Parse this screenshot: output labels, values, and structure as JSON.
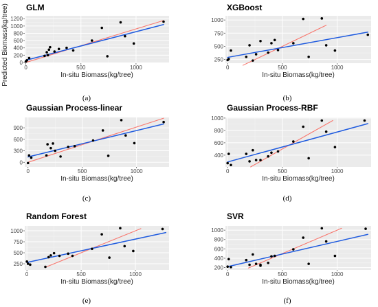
{
  "figure": {
    "panels": [
      {
        "caption": "(a)",
        "chart_data": {
          "type": "scatter",
          "title": "GLM",
          "xlabel": "In-situ Biomass(kg/tree)",
          "ylabel": "Predicted Biomass(kg/tree)",
          "xlim": [
            -10,
            1300
          ],
          "ylim": [
            -20,
            1280
          ],
          "xticks": [
            0,
            500,
            1000
          ],
          "xtick_labels": [
            "0",
            "500",
            "1000"
          ],
          "yticks": [
            0,
            200,
            400,
            600,
            800,
            1000,
            1200
          ],
          "ytick_labels": [
            "0",
            "200",
            "400",
            "600",
            "800",
            "1000",
            "1200"
          ],
          "grid": true,
          "points": [
            [
              0,
              25
            ],
            [
              10,
              60
            ],
            [
              30,
              120
            ],
            [
              170,
              180
            ],
            [
              200,
              200
            ],
            [
              190,
              280
            ],
            [
              210,
              350
            ],
            [
              220,
              420
            ],
            [
              260,
              300
            ],
            [
              300,
              370
            ],
            [
              370,
              400
            ],
            [
              430,
              330
            ],
            [
              600,
              600
            ],
            [
              690,
              950
            ],
            [
              740,
              170
            ],
            [
              860,
              1100
            ],
            [
              900,
              720
            ],
            [
              980,
              520
            ],
            [
              1250,
              1120
            ]
          ],
          "series": [
            {
              "name": "",
              "kind": "line",
              "color": "#f8766d",
              "x": [
                0,
                1250
              ],
              "y": [
                0,
                1150
              ]
            },
            {
              "name": "",
              "kind": "line",
              "color": "#1f5bdf",
              "x": [
                0,
                1250
              ],
              "y": [
                60,
                1040
              ]
            }
          ]
        }
      },
      {
        "caption": "(b)",
        "chart_data": {
          "type": "scatter",
          "title": "XGBoost",
          "xlabel": "In-situ Biomass(kg/tree)",
          "ylabel": "",
          "xlim": [
            -20,
            1310
          ],
          "ylim": [
            180,
            1080
          ],
          "xticks": [
            0,
            500,
            1000
          ],
          "xtick_labels": [
            "0",
            "500",
            "1000"
          ],
          "yticks": [
            250,
            500,
            750,
            1000
          ],
          "ytick_labels": [
            "250",
            "500",
            "750",
            "1000"
          ],
          "grid": true,
          "points": [
            [
              0,
              240
            ],
            [
              10,
              260
            ],
            [
              30,
              420
            ],
            [
              170,
              300
            ],
            [
              200,
              520
            ],
            [
              230,
              230
            ],
            [
              260,
              350
            ],
            [
              300,
              600
            ],
            [
              370,
              380
            ],
            [
              400,
              560
            ],
            [
              430,
              620
            ],
            [
              460,
              430
            ],
            [
              600,
              560
            ],
            [
              690,
              1020
            ],
            [
              740,
              300
            ],
            [
              860,
              1030
            ],
            [
              900,
              520
            ],
            [
              980,
              420
            ],
            [
              1280,
              720
            ]
          ],
          "series": [
            {
              "name": "",
              "kind": "line",
              "color": "#f8766d",
              "x": [
                140,
                900
              ],
              "y": [
                140,
                900
              ]
            },
            {
              "name": "",
              "kind": "line",
              "color": "#1f5bdf",
              "x": [
                0,
                1280
              ],
              "y": [
                290,
                770
              ]
            }
          ]
        }
      },
      {
        "caption": "(c)",
        "chart_data": {
          "type": "scatter",
          "title": "Gaussian Process-linear",
          "xlabel": "In-situ Biomass(kg/tree)",
          "ylabel": "",
          "xlim": [
            -30,
            1300
          ],
          "ylim": [
            -120,
            1170
          ],
          "xticks": [
            0,
            500,
            1000
          ],
          "xtick_labels": [
            "0",
            "500",
            "1000"
          ],
          "yticks": [
            0,
            300,
            600,
            900
          ],
          "ytick_labels": [
            "0",
            "300",
            "600",
            "900"
          ],
          "grid": true,
          "points": [
            [
              0,
              -20
            ],
            [
              10,
              180
            ],
            [
              30,
              120
            ],
            [
              170,
              180
            ],
            [
              180,
              470
            ],
            [
              210,
              370
            ],
            [
              230,
              490
            ],
            [
              250,
              300
            ],
            [
              300,
              150
            ],
            [
              370,
              400
            ],
            [
              430,
              420
            ],
            [
              600,
              570
            ],
            [
              690,
              830
            ],
            [
              740,
              170
            ],
            [
              860,
              1100
            ],
            [
              900,
              700
            ],
            [
              980,
              500
            ],
            [
              1250,
              1050
            ]
          ],
          "series": [
            {
              "name": "",
              "kind": "line",
              "color": "#f8766d",
              "x": [
                0,
                1250
              ],
              "y": [
                0,
                1150
              ]
            },
            {
              "name": "",
              "kind": "line",
              "color": "#1f5bdf",
              "x": [
                0,
                1250
              ],
              "y": [
                140,
                1000
              ]
            }
          ]
        }
      },
      {
        "caption": "(d)",
        "chart_data": {
          "type": "scatter",
          "title": "Gaussian Process-RBF",
          "xlabel": "In-situ Biomass(kg/tree)",
          "ylabel": "",
          "xlim": [
            -20,
            1310
          ],
          "ylim": [
            210,
            1010
          ],
          "xticks": [
            0,
            500,
            1000
          ],
          "xtick_labels": [
            "0",
            "500",
            "1000"
          ],
          "yticks": [
            400,
            600,
            800,
            1000
          ],
          "ytick_labels": [
            "400",
            "600",
            "800",
            "1000"
          ],
          "grid": true,
          "points": [
            [
              0,
              270
            ],
            [
              10,
              420
            ],
            [
              30,
              240
            ],
            [
              170,
              420
            ],
            [
              200,
              300
            ],
            [
              230,
              480
            ],
            [
              260,
              320
            ],
            [
              300,
              320
            ],
            [
              370,
              380
            ],
            [
              400,
              440
            ],
            [
              460,
              460
            ],
            [
              600,
              620
            ],
            [
              690,
              860
            ],
            [
              740,
              350
            ],
            [
              860,
              960
            ],
            [
              900,
              780
            ],
            [
              980,
              530
            ],
            [
              1250,
              960
            ]
          ],
          "series": [
            {
              "name": "",
              "kind": "line",
              "color": "#f8766d",
              "x": [
                210,
                960
              ],
              "y": [
                210,
                960
              ]
            },
            {
              "name": "",
              "kind": "line",
              "color": "#1f5bdf",
              "x": [
                0,
                1280
              ],
              "y": [
                290,
                910
              ]
            }
          ]
        }
      },
      {
        "caption": "(e)",
        "chart_data": {
          "type": "scatter",
          "title": "Random Forest",
          "xlabel": "In-situ Biomass(kg/tree)",
          "ylabel": "",
          "xlim": [
            -20,
            1310
          ],
          "ylim": [
            110,
            1110
          ],
          "xticks": [
            0,
            500,
            1000
          ],
          "xtick_labels": [
            "0",
            "500",
            "1000"
          ],
          "yticks": [
            250,
            500,
            750,
            1000
          ],
          "ytick_labels": [
            "250",
            "500",
            "750",
            "1000"
          ],
          "grid": true,
          "points": [
            [
              0,
              300
            ],
            [
              10,
              250
            ],
            [
              30,
              230
            ],
            [
              170,
              180
            ],
            [
              200,
              400
            ],
            [
              220,
              440
            ],
            [
              250,
              490
            ],
            [
              300,
              430
            ],
            [
              380,
              480
            ],
            [
              420,
              430
            ],
            [
              600,
              590
            ],
            [
              690,
              920
            ],
            [
              760,
              390
            ],
            [
              860,
              1060
            ],
            [
              900,
              650
            ],
            [
              980,
              540
            ],
            [
              1250,
              1040
            ]
          ],
          "series": [
            {
              "name": "",
              "kind": "line",
              "color": "#f8766d",
              "x": [
                180,
                1050
              ],
              "y": [
                180,
                1050
              ]
            },
            {
              "name": "",
              "kind": "line",
              "color": "#1f5bdf",
              "x": [
                0,
                1280
              ],
              "y": [
                280,
                960
              ]
            }
          ]
        }
      },
      {
        "caption": "(f)",
        "chart_data": {
          "type": "scatter",
          "title": "SVR",
          "xlabel": "In-situ Biomass(kg/tree)",
          "ylabel": "",
          "xlim": [
            -20,
            1310
          ],
          "ylim": [
            150,
            1090
          ],
          "xticks": [
            0,
            500,
            1000
          ],
          "xtick_labels": [
            "0",
            "500",
            "1000"
          ],
          "yticks": [
            200,
            400,
            600,
            800,
            1000
          ],
          "ytick_labels": [
            "200",
            "400",
            "600",
            "800",
            "1000"
          ],
          "grid": true,
          "points": [
            [
              0,
              220
            ],
            [
              10,
              380
            ],
            [
              30,
              210
            ],
            [
              170,
              360
            ],
            [
              200,
              260
            ],
            [
              230,
              480
            ],
            [
              260,
              280
            ],
            [
              300,
              260
            ],
            [
              300,
              240
            ],
            [
              370,
              300
            ],
            [
              400,
              440
            ],
            [
              430,
              450
            ],
            [
              600,
              590
            ],
            [
              690,
              840
            ],
            [
              740,
              280
            ],
            [
              860,
              1040
            ],
            [
              900,
              760
            ],
            [
              980,
              450
            ],
            [
              1260,
              1030
            ]
          ],
          "series": [
            {
              "name": "",
              "kind": "line",
              "color": "#f8766d",
              "x": [
                190,
                1040
              ],
              "y": [
                190,
                1040
              ]
            },
            {
              "name": "",
              "kind": "line",
              "color": "#1f5bdf",
              "x": [
                0,
                1280
              ],
              "y": [
                220,
                910
              ]
            }
          ]
        }
      }
    ]
  }
}
